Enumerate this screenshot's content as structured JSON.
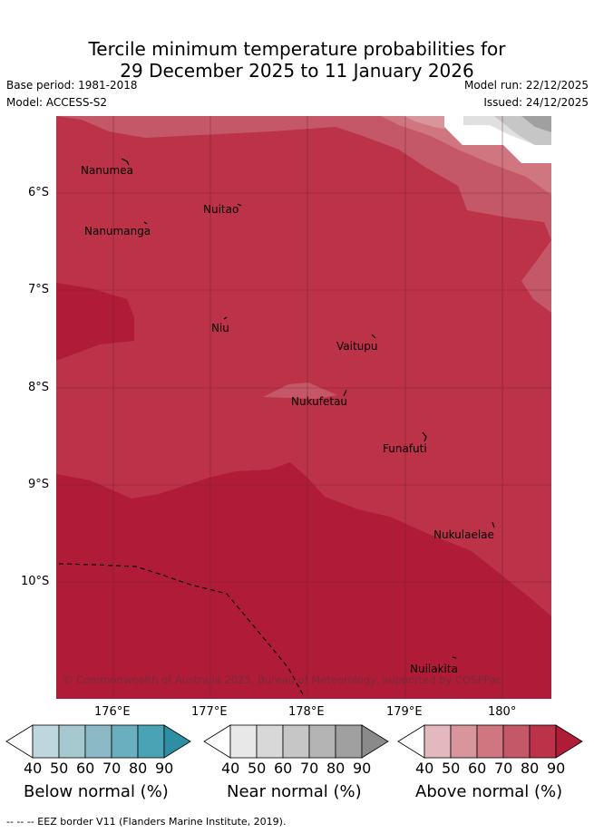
{
  "title": {
    "line1": "Tercile minimum temperature probabilities for",
    "line2": "29 December 2025 to 11 January 2026"
  },
  "meta": {
    "base_period": "Base period: 1981-2018",
    "model": "Model: ACCESS-S2",
    "model_run": "Model run: 22/12/2025",
    "issued": "Issued: 24/12/2025"
  },
  "map": {
    "lat_labels": [
      "6°S",
      "7°S",
      "8°S",
      "9°S",
      "10°S"
    ],
    "lon_labels": [
      "176°E",
      "177°E",
      "178°E",
      "179°E",
      "180°"
    ],
    "places": {
      "nanumea": "Nanumea",
      "nuitao": "Nuitao",
      "nanumanga": "Nanumanga",
      "niu": "Niu",
      "vaitupu": "Vaitupu",
      "nukufetau": "Nukufetau",
      "funafuti": "Funafuti",
      "nukulaelae": "Nukulaelae",
      "nuilakita": "Nuilakita"
    },
    "copyright": "© Commonwealth of Australia 2025, Bureau of Meteorology, supported by COSPPac"
  },
  "colorbars": {
    "ticks": [
      "40",
      "50",
      "60",
      "70",
      "80",
      "90"
    ],
    "below": {
      "title": "Below normal (%)",
      "colors": [
        "#ffffff",
        "#bed6dd",
        "#a6c9cf",
        "#8bbac6",
        "#6aafbf",
        "#4aa3b4",
        "#2e8fa4"
      ]
    },
    "near": {
      "title": "Near normal (%)",
      "colors": [
        "#ffffff",
        "#e8e8e8",
        "#d8d8d8",
        "#c6c6c6",
        "#b4b4b4",
        "#a0a0a0",
        "#8a8a8a"
      ]
    },
    "above": {
      "title": "Above normal (%)",
      "colors": [
        "#ffffff",
        "#e3b8be",
        "#d8959c",
        "#cf7680",
        "#c55868",
        "#bc3248",
        "#b01c38"
      ]
    }
  },
  "footer": "--  --  -- EEZ border V11 (Flanders Marine Institute, 2019)."
}
